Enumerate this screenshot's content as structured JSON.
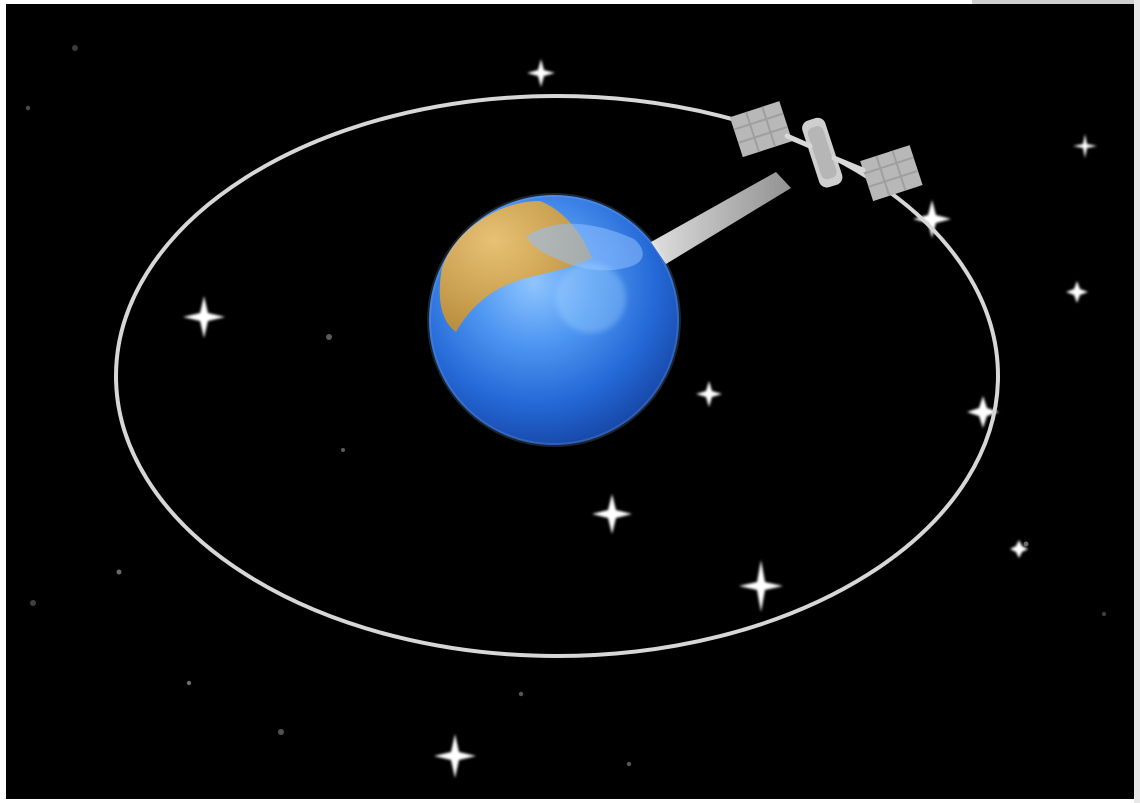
{
  "scene": {
    "background": "#000000",
    "orbit_color": "#d7d7d7",
    "earth_ocean_color": "#2f79e4",
    "earth_land_color": "#d7a64a",
    "satellite_color": "#b9b9b9",
    "beam_color": "#e0e0e0",
    "icons": {
      "earth": "earth-icon",
      "satellite": "satellite-icon",
      "orbit": "orbit-path",
      "stars": "star-icon"
    }
  }
}
